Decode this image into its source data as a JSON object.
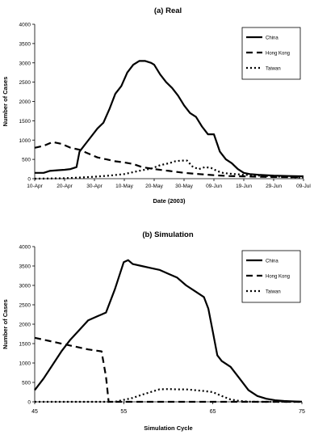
{
  "chart_data": [
    {
      "type": "line",
      "title": "(a) Real",
      "xlabel": "Date (2003)",
      "ylabel": "Number of Cases",
      "x_tick_labels": [
        "10-Apr",
        "20-Apr",
        "30-Apr",
        "10-May",
        "20-May",
        "30-May",
        "09-Jun",
        "19-Jun",
        "29-Jun",
        "09-Jul"
      ],
      "x_tick_days": [
        0,
        10,
        20,
        30,
        40,
        50,
        60,
        70,
        80,
        90
      ],
      "xlim": [
        0,
        90
      ],
      "ylim": [
        0,
        4000
      ],
      "yticks": [
        0,
        500,
        1000,
        1500,
        2000,
        2500,
        3000,
        3500,
        4000
      ],
      "legend_position": "top-right",
      "series": [
        {
          "name": "China",
          "style": "solid",
          "points": [
            [
              0,
              150
            ],
            [
              3,
              150
            ],
            [
              5,
              200
            ],
            [
              8,
              220
            ],
            [
              10,
              230
            ],
            [
              12,
              250
            ],
            [
              14,
              300
            ],
            [
              15,
              700
            ],
            [
              17,
              900
            ],
            [
              19,
              1100
            ],
            [
              21,
              1300
            ],
            [
              23,
              1450
            ],
            [
              25,
              1800
            ],
            [
              27,
              2200
            ],
            [
              29,
              2400
            ],
            [
              31,
              2750
            ],
            [
              33,
              2950
            ],
            [
              35,
              3050
            ],
            [
              37,
              3050
            ],
            [
              39,
              3000
            ],
            [
              40,
              2950
            ],
            [
              42,
              2700
            ],
            [
              44,
              2500
            ],
            [
              46,
              2350
            ],
            [
              48,
              2150
            ],
            [
              50,
              1900
            ],
            [
              52,
              1700
            ],
            [
              54,
              1600
            ],
            [
              56,
              1350
            ],
            [
              58,
              1150
            ],
            [
              60,
              1150
            ],
            [
              62,
              700
            ],
            [
              64,
              500
            ],
            [
              66,
              400
            ],
            [
              68,
              250
            ],
            [
              70,
              150
            ],
            [
              72,
              120
            ],
            [
              75,
              100
            ],
            [
              80,
              80
            ],
            [
              85,
              70
            ],
            [
              90,
              60
            ]
          ]
        },
        {
          "name": "Hong Kong",
          "style": "dashed",
          "points": [
            [
              0,
              800
            ],
            [
              3,
              850
            ],
            [
              6,
              950
            ],
            [
              9,
              900
            ],
            [
              12,
              800
            ],
            [
              15,
              750
            ],
            [
              18,
              650
            ],
            [
              21,
              550
            ],
            [
              24,
              500
            ],
            [
              27,
              450
            ],
            [
              30,
              420
            ],
            [
              33,
              380
            ],
            [
              36,
              300
            ],
            [
              40,
              250
            ],
            [
              45,
              200
            ],
            [
              50,
              150
            ],
            [
              55,
              120
            ],
            [
              60,
              90
            ],
            [
              65,
              70
            ],
            [
              70,
              60
            ],
            [
              75,
              50
            ],
            [
              80,
              45
            ],
            [
              85,
              40
            ],
            [
              90,
              40
            ]
          ]
        },
        {
          "name": "Taiwan",
          "style": "dotted",
          "points": [
            [
              0,
              0
            ],
            [
              10,
              10
            ],
            [
              15,
              30
            ],
            [
              20,
              50
            ],
            [
              25,
              80
            ],
            [
              30,
              120
            ],
            [
              33,
              170
            ],
            [
              36,
              220
            ],
            [
              39,
              260
            ],
            [
              42,
              350
            ],
            [
              45,
              400
            ],
            [
              47,
              450
            ],
            [
              49,
              470
            ],
            [
              51,
              470
            ],
            [
              53,
              300
            ],
            [
              55,
              250
            ],
            [
              57,
              300
            ],
            [
              59,
              280
            ],
            [
              61,
              200
            ],
            [
              63,
              150
            ],
            [
              65,
              130
            ],
            [
              67,
              120
            ],
            [
              70,
              100
            ],
            [
              75,
              80
            ],
            [
              80,
              60
            ],
            [
              85,
              40
            ],
            [
              90,
              30
            ]
          ]
        }
      ]
    },
    {
      "type": "line",
      "title": "(b) Simulation",
      "xlabel": "Simulation Cycle",
      "ylabel": "Number of Cases",
      "xticks": [
        45,
        55,
        65,
        75
      ],
      "xlim": [
        45,
        75
      ],
      "ylim": [
        0,
        4000
      ],
      "yticks": [
        0,
        500,
        1000,
        1500,
        2000,
        2500,
        3000,
        3500,
        4000
      ],
      "legend_position": "top-right",
      "series": [
        {
          "name": "China",
          "style": "solid",
          "points": [
            [
              45,
              300
            ],
            [
              46,
              600
            ],
            [
              47,
              950
            ],
            [
              48,
              1300
            ],
            [
              49,
              1600
            ],
            [
              50,
              1850
            ],
            [
              51,
              2100
            ],
            [
              52,
              2200
            ],
            [
              53,
              2300
            ],
            [
              54,
              2900
            ],
            [
              55,
              3600
            ],
            [
              55.5,
              3650
            ],
            [
              56,
              3550
            ],
            [
              57,
              3500
            ],
            [
              58,
              3450
            ],
            [
              59,
              3400
            ],
            [
              60,
              3300
            ],
            [
              61,
              3200
            ],
            [
              62,
              3000
            ],
            [
              63,
              2850
            ],
            [
              64,
              2700
            ],
            [
              64.5,
              2400
            ],
            [
              65,
              1800
            ],
            [
              65.5,
              1200
            ],
            [
              66,
              1050
            ],
            [
              67,
              900
            ],
            [
              68,
              600
            ],
            [
              69,
              300
            ],
            [
              70,
              150
            ],
            [
              71,
              80
            ],
            [
              72,
              40
            ],
            [
              73,
              20
            ],
            [
              74,
              10
            ],
            [
              75,
              5
            ]
          ]
        },
        {
          "name": "Hong Kong",
          "style": "dashed",
          "points": [
            [
              45,
              1650
            ],
            [
              47,
              1550
            ],
            [
              49,
              1450
            ],
            [
              51,
              1350
            ],
            [
              52.5,
              1300
            ],
            [
              53,
              650
            ],
            [
              53.3,
              0
            ],
            [
              75,
              0
            ]
          ]
        },
        {
          "name": "Taiwan",
          "style": "dotted",
          "points": [
            [
              45,
              0
            ],
            [
              54,
              0
            ],
            [
              55,
              50
            ],
            [
              56,
              100
            ],
            [
              57,
              180
            ],
            [
              58,
              250
            ],
            [
              59,
              320
            ],
            [
              60,
              330
            ],
            [
              61,
              320
            ],
            [
              62,
              320
            ],
            [
              63,
              300
            ],
            [
              64,
              280
            ],
            [
              65,
              250
            ],
            [
              66,
              150
            ],
            [
              67,
              60
            ],
            [
              68,
              20
            ],
            [
              69,
              5
            ],
            [
              70,
              0
            ],
            [
              75,
              0
            ]
          ]
        }
      ]
    }
  ]
}
